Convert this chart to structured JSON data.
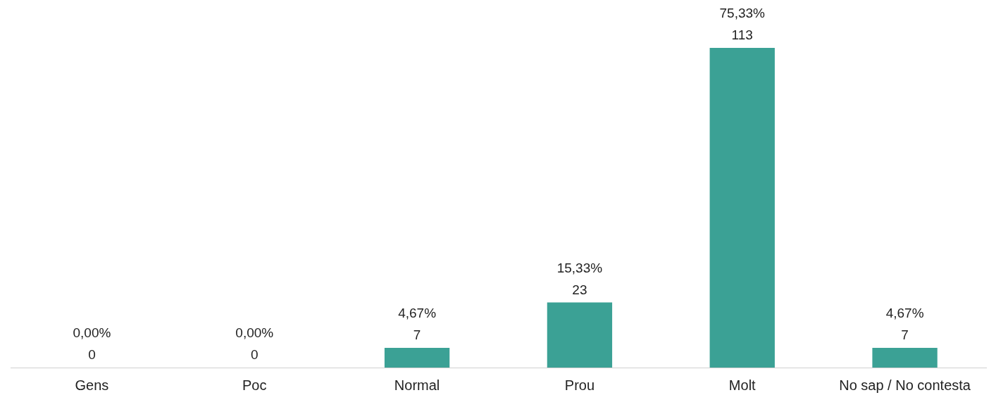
{
  "chart_data": {
    "type": "bar",
    "categories": [
      "Gens",
      "Poc",
      "Normal",
      "Prou",
      "Molt",
      "No sap / No contesta"
    ],
    "values": [
      0,
      0,
      7,
      23,
      113,
      7
    ],
    "value_labels": [
      "0,00%\n0",
      "0,00%\n0",
      "4,67%\n7",
      "15,33%\n23",
      "75,33%\n113",
      "4,67%\n7"
    ],
    "color": "#3ba195",
    "grid": false,
    "legend": false
  }
}
